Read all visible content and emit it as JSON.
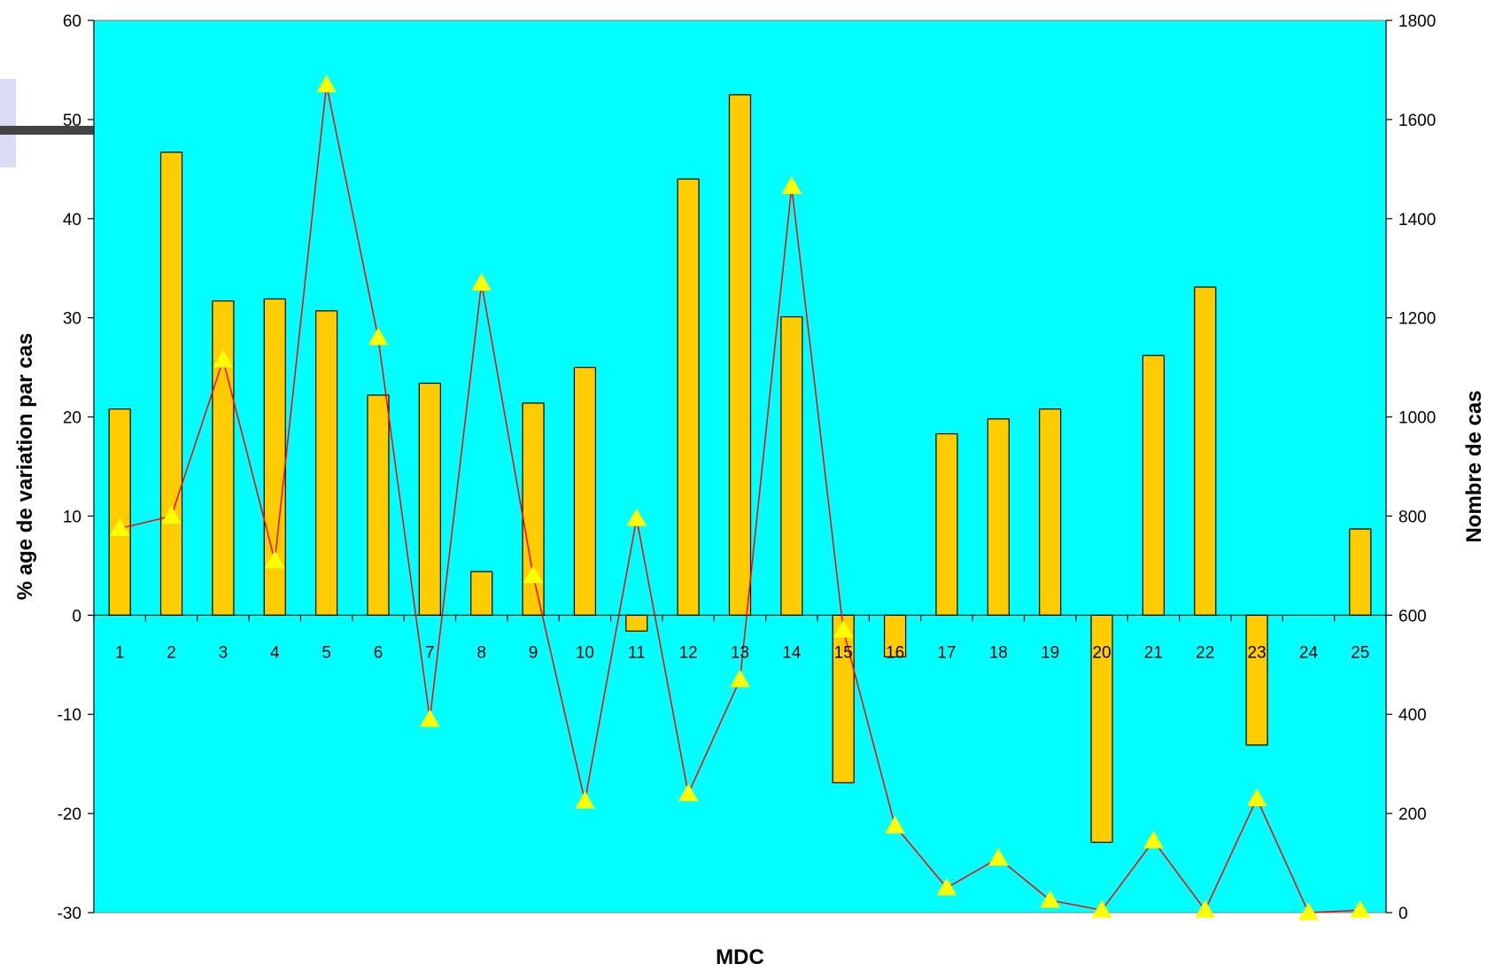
{
  "chart_data": {
    "type": "bar",
    "xlabel": "MDC",
    "ylabel": "% age de variation par cas",
    "y2label": "Nombre de cas",
    "categories": [
      "1",
      "2",
      "3",
      "4",
      "5",
      "6",
      "7",
      "8",
      "9",
      "10",
      "11",
      "12",
      "13",
      "14",
      "15",
      "16",
      "17",
      "18",
      "19",
      "20",
      "21",
      "22",
      "23",
      "24",
      "25"
    ],
    "ylim": [
      -30,
      60
    ],
    "y_ticks": [
      60,
      50,
      40,
      30,
      20,
      10,
      0,
      -10,
      -20,
      -30
    ],
    "y2lim": [
      0,
      1800
    ],
    "y2_ticks": [
      1800,
      1600,
      1400,
      1200,
      1000,
      800,
      600,
      400,
      200,
      0
    ],
    "grid": false,
    "series": [
      {
        "axis": "left",
        "kind": "bar",
        "color": "#FFCC00",
        "values": [
          20.8,
          46.7,
          31.7,
          31.9,
          30.7,
          22.2,
          23.4,
          4.4,
          21.4,
          25.0,
          -1.6,
          44.0,
          52.5,
          30.1,
          -16.9,
          -4.2,
          18.3,
          19.8,
          20.8,
          -22.9,
          26.2,
          33.1,
          -13.1,
          null,
          8.7
        ]
      },
      {
        "axis": "right",
        "kind": "line",
        "color": "#FF0000",
        "marker": "triangle",
        "marker_color": "#FFFF00",
        "values": [
          775,
          800,
          1115,
          710,
          1670,
          1160,
          390,
          1270,
          680,
          225,
          795,
          240,
          470,
          1465,
          570,
          175,
          50,
          110,
          25,
          5,
          145,
          5,
          230,
          0,
          5
        ]
      }
    ],
    "colors": {
      "plot_bg": "#00FFFF",
      "bar_fill": "#FFCC00",
      "bar_stroke": "#000000",
      "line": "#FF0000",
      "marker": "#FFFF00"
    }
  }
}
